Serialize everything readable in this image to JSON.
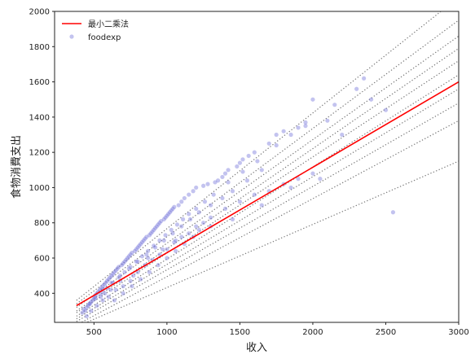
{
  "chart_data": {
    "type": "scatter",
    "xlabel": "收入",
    "ylabel": "食物消費支出",
    "xlim": [
      230,
      3000
    ],
    "ylim": [
      235,
      2000
    ],
    "xticks": [
      500,
      1000,
      1500,
      2000,
      2500,
      3000
    ],
    "yticks": [
      400,
      600,
      800,
      1000,
      1200,
      1400,
      1600,
      1800,
      2000
    ],
    "legend_position": "top-left",
    "legend": {
      "ols_label": "最小二乘法",
      "scatter_label": "foodexp"
    },
    "colors": {
      "ols": "#ff0000",
      "scatter": "#7b7bdb",
      "quantile": "#777777"
    },
    "ols_line": {
      "x": [
        380,
        3000
      ],
      "y": [
        330,
        1600
      ]
    },
    "quantile_lines": [
      {
        "x": [
          380,
          3000
        ],
        "y": [
          210,
          1150
        ]
      },
      {
        "x": [
          380,
          3000
        ],
        "y": [
          220,
          1380
        ]
      },
      {
        "x": [
          380,
          3000
        ],
        "y": [
          240,
          1480
        ]
      },
      {
        "x": [
          380,
          3000
        ],
        "y": [
          255,
          1560
        ]
      },
      {
        "x": [
          380,
          3000
        ],
        "y": [
          270,
          1640
        ]
      },
      {
        "x": [
          380,
          3000
        ],
        "y": [
          290,
          1720
        ]
      },
      {
        "x": [
          380,
          3000
        ],
        "y": [
          300,
          1790
        ]
      },
      {
        "x": [
          380,
          3000
        ],
        "y": [
          320,
          1860
        ]
      },
      {
        "x": [
          380,
          3000
        ],
        "y": [
          340,
          1950
        ]
      },
      {
        "x": [
          380,
          3000
        ],
        "y": [
          360,
          2080
        ]
      }
    ],
    "points": {
      "x": [
        420,
        440,
        450,
        460,
        470,
        480,
        490,
        500,
        505,
        510,
        520,
        530,
        540,
        545,
        550,
        560,
        570,
        575,
        580,
        590,
        600,
        610,
        615,
        620,
        630,
        640,
        650,
        660,
        670,
        680,
        690,
        700,
        710,
        720,
        730,
        740,
        750,
        760,
        770,
        780,
        790,
        800,
        810,
        820,
        830,
        840,
        850,
        860,
        870,
        880,
        890,
        900,
        910,
        920,
        930,
        940,
        950,
        960,
        970,
        980,
        990,
        1000,
        1010,
        1020,
        1030,
        1040,
        1050,
        1060,
        1080,
        1100,
        1120,
        1150,
        1180,
        1200,
        1220,
        1250,
        1280,
        1300,
        1330,
        1350,
        1380,
        1400,
        1420,
        1450,
        1480,
        1500,
        1520,
        1560,
        1600,
        1650,
        1700,
        1750,
        1800,
        1850,
        1900,
        1950,
        2000,
        2050,
        2200,
        2300,
        2500,
        2550,
        450,
        480,
        520,
        560,
        600,
        650,
        700,
        750,
        800,
        850,
        900,
        950,
        1000,
        1050,
        1100,
        1150,
        1200,
        1250,
        1300,
        1400,
        1500,
        1600,
        1700,
        1800,
        1900,
        2000,
        560,
        620,
        680,
        740,
        800,
        860,
        920,
        980,
        1040,
        1100,
        1160,
        1220,
        1300,
        1380,
        1450,
        1550,
        1650,
        2100,
        2350,
        430,
        470,
        510,
        550,
        590,
        630,
        670,
        710,
        750,
        790,
        830,
        870,
        910,
        950,
        990,
        1030,
        1070,
        1110,
        1150,
        1200,
        1260,
        1320,
        1420,
        1520,
        1620,
        1750,
        1850,
        1950,
        2150,
        2400,
        640,
        700,
        760,
        820,
        880,
        940,
        1000,
        1060,
        1120,
        1180
      ],
      "y": [
        290,
        300,
        320,
        330,
        340,
        350,
        360,
        370,
        380,
        390,
        400,
        410,
        420,
        380,
        430,
        440,
        450,
        400,
        460,
        470,
        480,
        490,
        420,
        500,
        510,
        520,
        530,
        540,
        550,
        470,
        560,
        570,
        580,
        590,
        600,
        610,
        620,
        630,
        500,
        640,
        650,
        660,
        670,
        680,
        690,
        700,
        710,
        720,
        600,
        730,
        740,
        750,
        760,
        770,
        780,
        790,
        800,
        810,
        650,
        820,
        830,
        840,
        850,
        860,
        870,
        880,
        890,
        700,
        900,
        920,
        940,
        960,
        980,
        1000,
        760,
        1010,
        1020,
        780,
        1030,
        1040,
        1060,
        1080,
        1100,
        820,
        1120,
        1140,
        1160,
        1180,
        1200,
        900,
        1250,
        1300,
        1320,
        1000,
        1340,
        1350,
        1500,
        1050,
        1300,
        1560,
        1440,
        860,
        270,
        300,
        330,
        360,
        380,
        420,
        440,
        470,
        520,
        560,
        590,
        620,
        650,
        690,
        720,
        740,
        780,
        800,
        830,
        880,
        920,
        960,
        980,
        1020,
        1050,
        1080,
        420,
        460,
        500,
        540,
        580,
        620,
        660,
        700,
        740,
        780,
        820,
        860,
        900,
        940,
        980,
        1040,
        1100,
        1380,
        1620,
        310,
        340,
        370,
        400,
        430,
        460,
        490,
        520,
        550,
        580,
        610,
        640,
        670,
        700,
        730,
        760,
        790,
        820,
        850,
        880,
        920,
        960,
        1030,
        1090,
        1150,
        1240,
        1300,
        1370,
        1470,
        1500,
        360,
        400,
        440,
        480,
        520,
        560,
        600,
        640,
        680,
        720
      ]
    }
  }
}
